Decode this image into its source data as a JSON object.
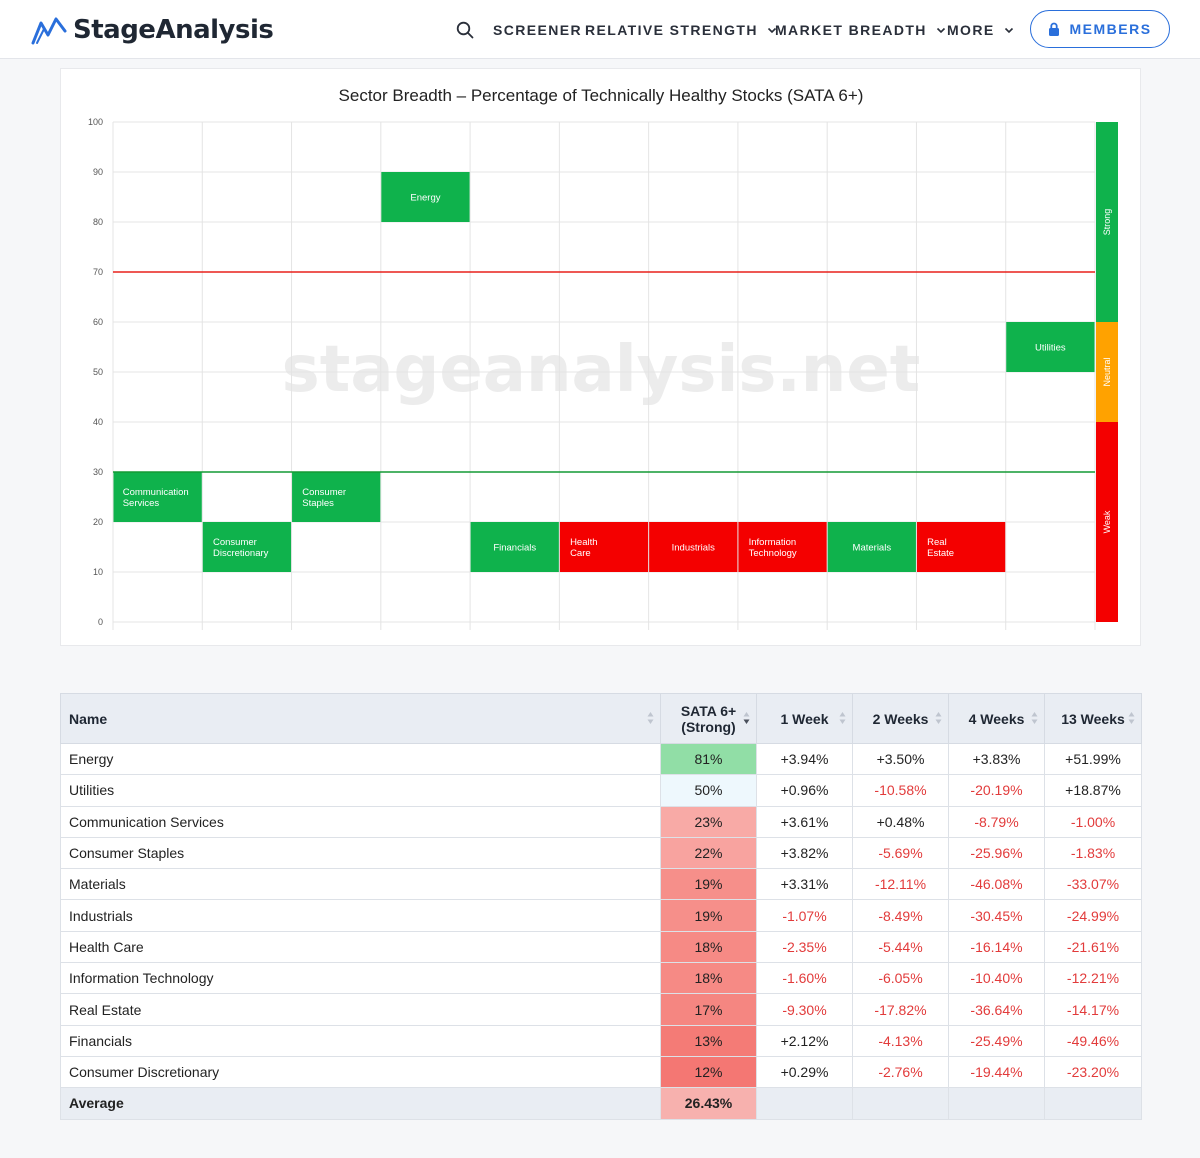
{
  "header": {
    "brand": "StageAnalysis",
    "nav": {
      "screener": "SCREENER",
      "relative_strength": "RELATIVE STRENGTH",
      "market_breadth": "MARKET BREADTH",
      "more": "MORE"
    },
    "members_label": "MEMBERS"
  },
  "chart_data": {
    "type": "bar",
    "title": "Sector Breadth – Percentage of Technically Healthy Stocks (SATA 6+)",
    "watermark": "stageanalysis.net",
    "ylim": [
      0,
      100
    ],
    "yticks": [
      0,
      10,
      20,
      30,
      40,
      50,
      60,
      70,
      80,
      90,
      100
    ],
    "thresholds": [
      {
        "value": 70,
        "color": "#e8201b"
      },
      {
        "value": 30,
        "color": "#149a35"
      }
    ],
    "zones": [
      {
        "label": "Strong",
        "from": 60,
        "to": 100,
        "color": "#0fb24c"
      },
      {
        "label": "Neutral",
        "from": 40,
        "to": 60,
        "color": "#ffa200"
      },
      {
        "label": "Weak",
        "from": 0,
        "to": 40,
        "color": "#f40000"
      }
    ],
    "boxes": [
      {
        "label": "Communication Services",
        "lines": [
          "Communication",
          "Services"
        ],
        "column": 0,
        "low": 20,
        "high": 30,
        "color": "#0fb24c"
      },
      {
        "label": "Consumer Discretionary",
        "lines": [
          "Consumer",
          "Discretionary"
        ],
        "column": 1,
        "low": 10,
        "high": 20,
        "color": "#0fb24c"
      },
      {
        "label": "Consumer Staples",
        "lines": [
          "Consumer",
          "Staples"
        ],
        "column": 2,
        "low": 20,
        "high": 30,
        "color": "#0fb24c"
      },
      {
        "label": "Energy",
        "lines": [
          "Energy"
        ],
        "column": 3,
        "low": 80,
        "high": 90,
        "color": "#0fb24c"
      },
      {
        "label": "Financials",
        "lines": [
          "Financials"
        ],
        "column": 4,
        "low": 10,
        "high": 20,
        "color": "#0fb24c"
      },
      {
        "label": "Health Care",
        "lines": [
          "Health",
          "Care"
        ],
        "column": 5,
        "low": 10,
        "high": 20,
        "color": "#f40000"
      },
      {
        "label": "Industrials",
        "lines": [
          "Industrials"
        ],
        "column": 6,
        "low": 10,
        "high": 20,
        "color": "#f40000"
      },
      {
        "label": "Information Technology",
        "lines": [
          "Information",
          "Technology"
        ],
        "column": 7,
        "low": 10,
        "high": 20,
        "color": "#f40000"
      },
      {
        "label": "Materials",
        "lines": [
          "Materials"
        ],
        "column": 8,
        "low": 10,
        "high": 20,
        "color": "#0fb24c"
      },
      {
        "label": "Real Estate",
        "lines": [
          "Real",
          "Estate"
        ],
        "column": 9,
        "low": 10,
        "high": 20,
        "color": "#f40000"
      },
      {
        "label": "Utilities",
        "lines": [
          "Utilities"
        ],
        "column": 10,
        "low": 50,
        "high": 60,
        "color": "#0fb24c"
      }
    ]
  },
  "table": {
    "headers": {
      "name": "Name",
      "sata_line1": "SATA 6+",
      "sata_line2": "(Strong)",
      "w1": "1 Week",
      "w2": "2 Weeks",
      "w4": "4 Weeks",
      "w13": "13 Weeks"
    },
    "rows": [
      {
        "name": "Energy",
        "sata": "81%",
        "sata_bg": "#91dea6",
        "w1": "+3.94%",
        "w2": "+3.50%",
        "w4": "+3.83%",
        "w13": "+51.99%"
      },
      {
        "name": "Utilities",
        "sata": "50%",
        "sata_bg": "#eef8fd",
        "w1": "+0.96%",
        "w2": "-10.58%",
        "w4": "-20.19%",
        "w13": "+18.87%"
      },
      {
        "name": "Communication Services",
        "sata": "23%",
        "sata_bg": "#f8aaa6",
        "w1": "+3.61%",
        "w2": "+0.48%",
        "w4": "-8.79%",
        "w13": "-1.00%"
      },
      {
        "name": "Consumer Staples",
        "sata": "22%",
        "sata_bg": "#f8a39f",
        "w1": "+3.82%",
        "w2": "-5.69%",
        "w4": "-25.96%",
        "w13": "-1.83%"
      },
      {
        "name": "Materials",
        "sata": "19%",
        "sata_bg": "#f68f8a",
        "w1": "+3.31%",
        "w2": "-12.11%",
        "w4": "-46.08%",
        "w13": "-33.07%"
      },
      {
        "name": "Industrials",
        "sata": "19%",
        "sata_bg": "#f68f8a",
        "w1": "-1.07%",
        "w2": "-8.49%",
        "w4": "-30.45%",
        "w13": "-24.99%"
      },
      {
        "name": "Health Care",
        "sata": "18%",
        "sata_bg": "#f68a85",
        "w1": "-2.35%",
        "w2": "-5.44%",
        "w4": "-16.14%",
        "w13": "-21.61%"
      },
      {
        "name": "Information Technology",
        "sata": "18%",
        "sata_bg": "#f68a85",
        "w1": "-1.60%",
        "w2": "-6.05%",
        "w4": "-10.40%",
        "w13": "-12.21%"
      },
      {
        "name": "Real Estate",
        "sata": "17%",
        "sata_bg": "#f58681",
        "w1": "-9.30%",
        "w2": "-17.82%",
        "w4": "-36.64%",
        "w13": "-14.17%"
      },
      {
        "name": "Financials",
        "sata": "13%",
        "sata_bg": "#f47b76",
        "w1": "+2.12%",
        "w2": "-4.13%",
        "w4": "-25.49%",
        "w13": "-49.46%"
      },
      {
        "name": "Consumer Discretionary",
        "sata": "12%",
        "sata_bg": "#f47773",
        "w1": "+0.29%",
        "w2": "-2.76%",
        "w4": "-19.44%",
        "w13": "-23.20%"
      }
    ],
    "average": {
      "label": "Average",
      "sata": "26.43%"
    }
  }
}
